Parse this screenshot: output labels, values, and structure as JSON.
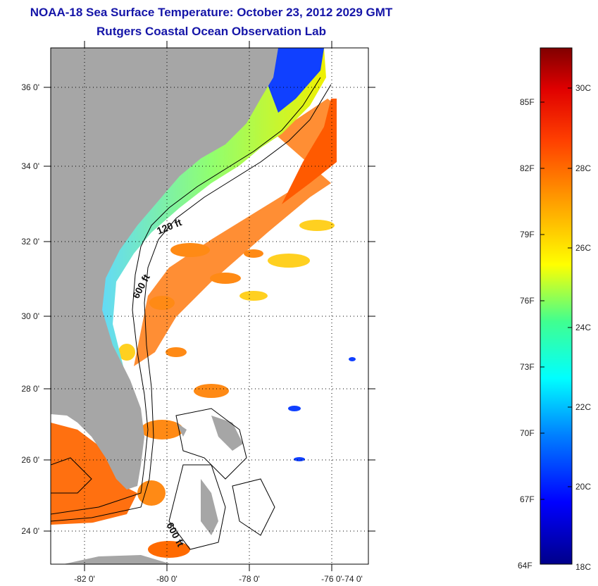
{
  "header": {
    "title": "NOAA-18 Sea Surface Temperature:  October 23, 2012 2029 GMT",
    "subtitle": "Rutgers Coastal Ocean Observation Lab"
  },
  "map": {
    "lat_labels": [
      "36 0'",
      "34 0'",
      "32 0'",
      "30 0'",
      "28 0'",
      "26 0'",
      "24 0'"
    ],
    "lon_labels": [
      "-82 0'",
      "-80 0'",
      "-78 0'",
      "-76 0'",
      "-74 0'"
    ],
    "contour_labels": [
      "120 ft",
      "600 ft",
      "600 ft"
    ],
    "colors": {
      "land": "#a6a6a6",
      "no_data": "#ffffff",
      "axis": "#000000"
    }
  },
  "colorbar": {
    "fahrenheit_labels": [
      "85F",
      "82F",
      "79F",
      "76F",
      "73F",
      "70F",
      "67F",
      "64F"
    ],
    "celsius_labels": [
      "30C",
      "28C",
      "26C",
      "24C",
      "22C",
      "20C",
      "18C"
    ]
  }
}
